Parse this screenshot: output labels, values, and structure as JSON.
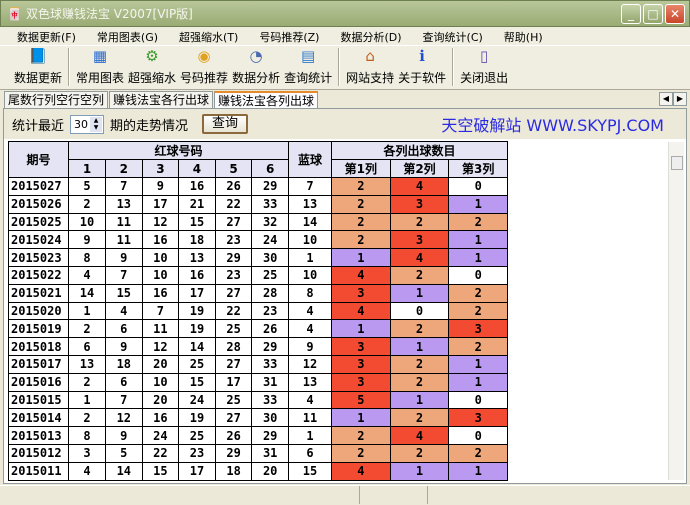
{
  "window": {
    "title": "双色球赚钱法宝  V2007[VIP版]"
  },
  "menu": [
    "数据更新(F)",
    "常用图表(G)",
    "超强缩水(T)",
    "号码推荐(Z)",
    "数据分析(D)",
    "查询统计(C)",
    "帮助(H)"
  ],
  "toolbar": [
    {
      "label": "数据更新",
      "icon": "book-update-icon"
    },
    {
      "label": "常用图表",
      "icon": "chart-grid-icon"
    },
    {
      "label": "超强缩水",
      "icon": "gear-book-icon"
    },
    {
      "label": "号码推荐",
      "icon": "coins-hand-icon"
    },
    {
      "label": "数据分析",
      "icon": "analysis-doc-icon"
    },
    {
      "label": "查询统计",
      "icon": "stats-window-icon"
    },
    {
      "label": "网站支持",
      "icon": "home-icon"
    },
    {
      "label": "关于软件",
      "icon": "info-icon"
    },
    {
      "label": "关闭退出",
      "icon": "exit-door-icon"
    }
  ],
  "tabs": [
    {
      "label": "尾数行列空行空列"
    },
    {
      "label": "赚钱法宝各行出球"
    },
    {
      "label": "赚钱法宝各列出球",
      "active": true
    }
  ],
  "query": {
    "prefix": "统计最近",
    "value": "30",
    "suffix": "期的走势情况",
    "button": "查询",
    "brand": "天空破解站 WWW.SKYPJ.COM"
  },
  "table": {
    "headers": {
      "period": "期号",
      "red": "红球号码",
      "red_cols": [
        "1",
        "2",
        "3",
        "4",
        "5",
        "6"
      ],
      "blue": "蓝球",
      "counts": "各列出球数目",
      "count_cols": [
        "第1列",
        "第2列",
        "第3列"
      ]
    },
    "count_colors": {
      "0": "#ffffff",
      "1": "#b99af0",
      "2": "#eea77a",
      "3+": "#f34a32"
    },
    "rows": [
      [
        "2015027",
        [
          5,
          7,
          9,
          16,
          26,
          29
        ],
        7,
        [
          2,
          4,
          0
        ]
      ],
      [
        "2015026",
        [
          2,
          13,
          17,
          21,
          22,
          33
        ],
        13,
        [
          2,
          3,
          1
        ]
      ],
      [
        "2015025",
        [
          10,
          11,
          12,
          15,
          27,
          32
        ],
        14,
        [
          2,
          2,
          2
        ]
      ],
      [
        "2015024",
        [
          9,
          11,
          16,
          18,
          23,
          24
        ],
        10,
        [
          2,
          3,
          1
        ]
      ],
      [
        "2015023",
        [
          8,
          9,
          10,
          13,
          29,
          30
        ],
        1,
        [
          1,
          4,
          1
        ]
      ],
      [
        "2015022",
        [
          4,
          7,
          10,
          16,
          23,
          25
        ],
        10,
        [
          4,
          2,
          0
        ]
      ],
      [
        "2015021",
        [
          14,
          15,
          16,
          17,
          27,
          28
        ],
        8,
        [
          3,
          1,
          2
        ]
      ],
      [
        "2015020",
        [
          1,
          4,
          7,
          19,
          22,
          23
        ],
        4,
        [
          4,
          0,
          2
        ]
      ],
      [
        "2015019",
        [
          2,
          6,
          11,
          19,
          25,
          26
        ],
        4,
        [
          1,
          2,
          3
        ]
      ],
      [
        "2015018",
        [
          6,
          9,
          12,
          14,
          28,
          29
        ],
        9,
        [
          3,
          1,
          2
        ]
      ],
      [
        "2015017",
        [
          13,
          18,
          20,
          25,
          27,
          33
        ],
        12,
        [
          3,
          2,
          1
        ]
      ],
      [
        "2015016",
        [
          2,
          6,
          10,
          15,
          17,
          31
        ],
        13,
        [
          3,
          2,
          1
        ]
      ],
      [
        "2015015",
        [
          1,
          7,
          20,
          24,
          25,
          33
        ],
        4,
        [
          5,
          1,
          0
        ]
      ],
      [
        "2015014",
        [
          2,
          12,
          16,
          19,
          27,
          30
        ],
        11,
        [
          1,
          2,
          3
        ]
      ],
      [
        "2015013",
        [
          8,
          9,
          24,
          25,
          26,
          29
        ],
        1,
        [
          2,
          4,
          0
        ]
      ],
      [
        "2015012",
        [
          3,
          5,
          22,
          23,
          29,
          31
        ],
        6,
        [
          2,
          2,
          2
        ]
      ],
      [
        "2015011",
        [
          4,
          14,
          15,
          17,
          18,
          20
        ],
        15,
        [
          4,
          1,
          1
        ]
      ]
    ]
  }
}
